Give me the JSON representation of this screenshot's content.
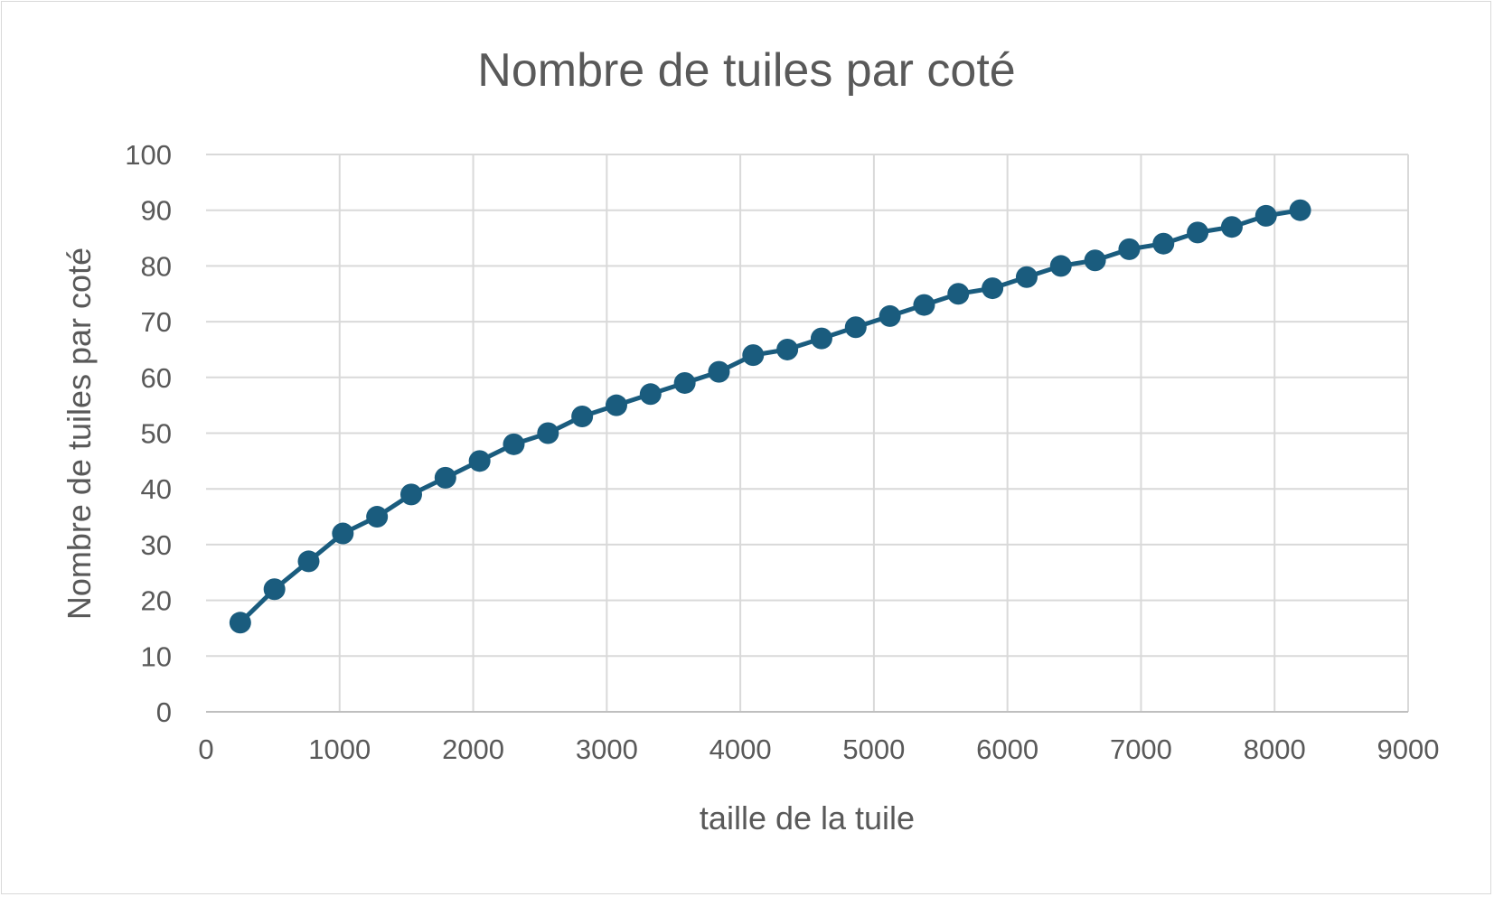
{
  "chart_data": {
    "type": "line",
    "title": "Nombre de tuiles par coté",
    "xlabel": "taille de la tuile",
    "ylabel": "Nombre de tuiles par coté",
    "xlim": [
      0,
      9000
    ],
    "ylim": [
      0,
      100
    ],
    "x_ticks": [
      "0",
      "1000",
      "2000",
      "3000",
      "4000",
      "5000",
      "6000",
      "7000",
      "8000",
      "9000"
    ],
    "y_ticks": [
      "0",
      "10",
      "20",
      "30",
      "40",
      "50",
      "60",
      "70",
      "80",
      "90",
      "100"
    ],
    "grid": true,
    "markers": true,
    "series_color": "#1a5c7e",
    "series": [
      {
        "x": [
          256,
          512,
          768,
          1024,
          1280,
          1536,
          1792,
          2048,
          2304,
          2560,
          2816,
          3072,
          3328,
          3584,
          3840,
          4096,
          4352,
          4608,
          4864,
          5120,
          5376,
          5632,
          5888,
          6144,
          6400,
          6656,
          6912,
          7168,
          7424,
          7680,
          7936,
          8192
        ],
        "values": [
          16,
          22,
          27,
          32,
          35,
          39,
          42,
          45,
          48,
          50,
          53,
          55,
          57,
          59,
          61,
          64,
          65,
          67,
          69,
          71,
          73,
          75,
          76,
          78,
          80,
          81,
          83,
          84,
          86,
          87,
          89,
          90
        ]
      }
    ]
  }
}
